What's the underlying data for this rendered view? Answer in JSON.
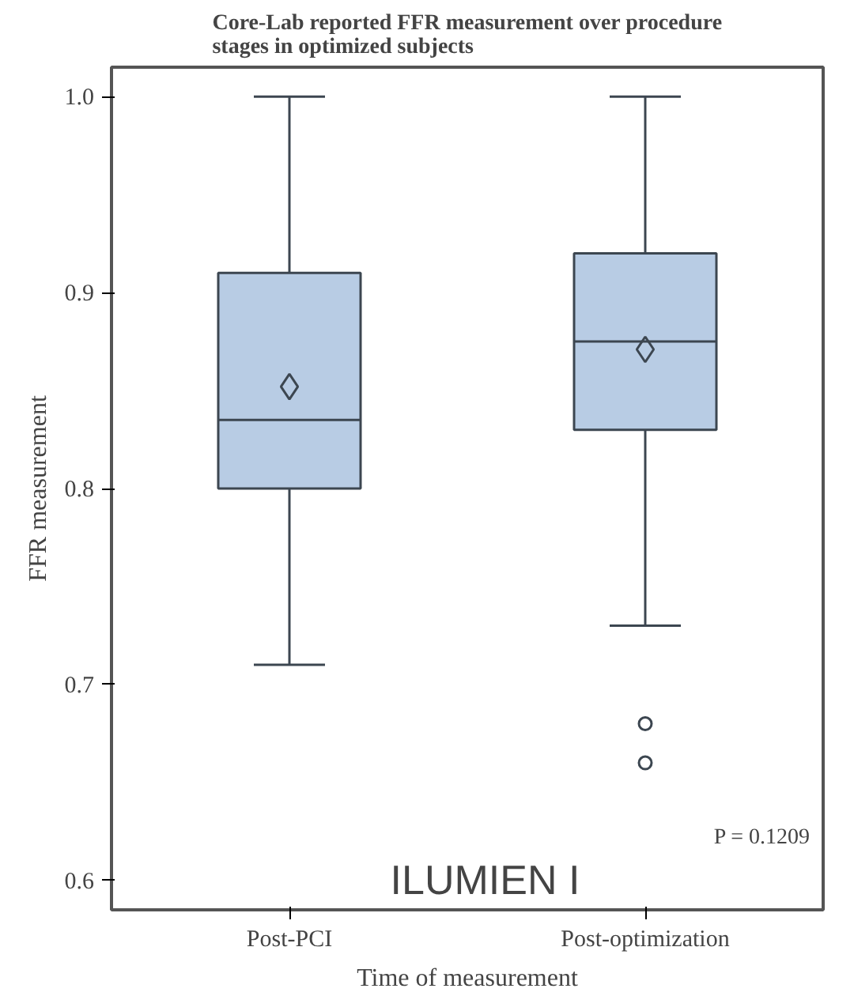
{
  "chart_data": {
    "type": "box",
    "title": "Core-Lab reported FFR measurement over procedure stages in optimized subjects",
    "xlabel": "Time of measurement",
    "ylabel": "FFR measurement",
    "categories": [
      "Post-PCI",
      "Post-optimization"
    ],
    "boxes": [
      {
        "low": 0.71,
        "q1": 0.8,
        "median": 0.835,
        "q3": 0.91,
        "high": 1.0,
        "mean": 0.852
      },
      {
        "low": 0.73,
        "q1": 0.83,
        "median": 0.875,
        "q3": 0.92,
        "high": 1.0,
        "mean": 0.871,
        "outliers": [
          0.68,
          0.66
        ]
      }
    ],
    "color": "#b8cce4",
    "ylim": [
      0.585,
      1.015
    ],
    "yticks": [
      0.6,
      0.7,
      0.8,
      0.9,
      {
        "value": 1,
        "label": "1.0"
      }
    ],
    "grid": false,
    "annotations": [
      "P = 0.1209",
      "ILUMIEN I"
    ]
  }
}
